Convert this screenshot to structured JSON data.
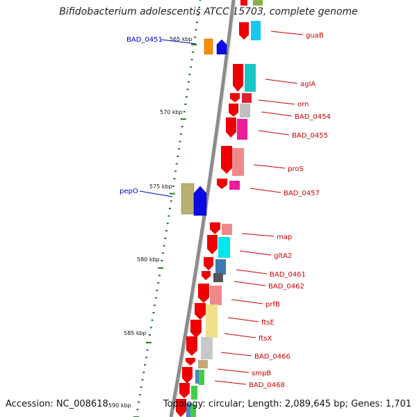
{
  "title": "Bifidobacterium adolescentis ATCC 15703, complete genome",
  "accession": "Accession: NC_008618",
  "summary": "Topology: circular; Length: 2,089,645 bp; Genes: 1,701",
  "colors": {
    "backbone": "#8c8c8c",
    "forward_label": "#cc0000",
    "reverse_label": "#0000cc",
    "tick": "#1a7a1a"
  },
  "ticks": [
    "565 kbp",
    "570 kbp",
    "575 kbp",
    "580 kbp",
    "585 kbp",
    "590 kbp"
  ],
  "forward_genes": [
    {
      "label": "guaB",
      "color": "#17c8f0"
    },
    {
      "label": "aglA",
      "color": "#19c6c6"
    },
    {
      "label": "orn",
      "color": "#e02030"
    },
    {
      "label": "BAD_0454",
      "color": "#c0c0c0"
    },
    {
      "label": "BAD_0455",
      "color": "#ee1c9a"
    },
    {
      "label": "proS",
      "color": "#f08a8a"
    },
    {
      "label": "BAD_0457",
      "color": "#ee1c9a"
    },
    {
      "label": "map",
      "color": "#f08a8a"
    },
    {
      "label": "gltA2",
      "color": "#00e6ee"
    },
    {
      "label": "BAD_0461",
      "color": "#3c78b4"
    },
    {
      "label": "BAD_0462",
      "color": "#555555"
    },
    {
      "label": "prfB",
      "color": "#f08a8a"
    },
    {
      "label": "ftsE",
      "color": "#f0e08a"
    },
    {
      "label": "ftsX",
      "color": "#c8c8c8"
    },
    {
      "label": "BAD_0466",
      "color": "#c0a878"
    },
    {
      "label": "smpB",
      "color": "#4a86c8"
    },
    {
      "label": "BAD_0468",
      "color": "#44cc44"
    }
  ],
  "reverse_genes": [
    {
      "label": "BAD_0451",
      "color": "#ff8c00"
    },
    {
      "label": "pepO",
      "color": "#b8b070"
    }
  ]
}
